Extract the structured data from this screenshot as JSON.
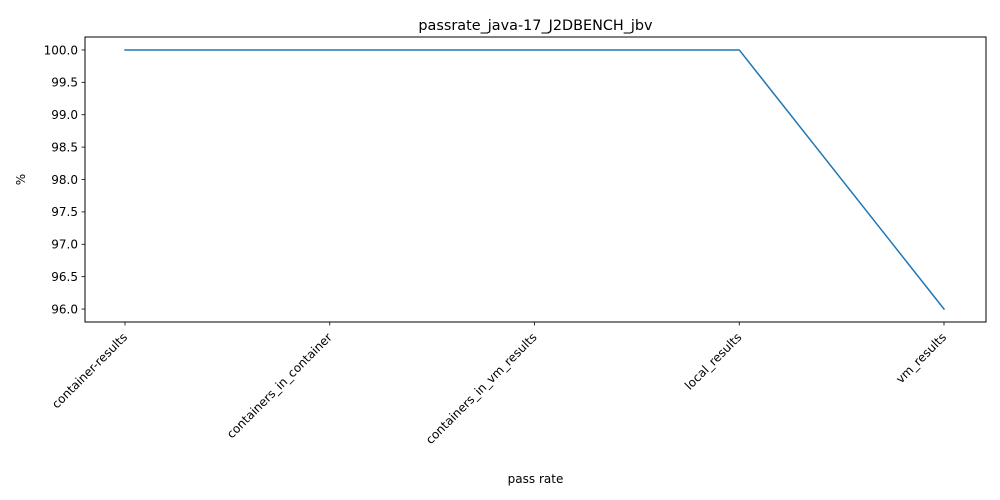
{
  "chart_data": {
    "type": "line",
    "title": "passrate_java-17_J2DBENCH_jbv",
    "xlabel": "pass rate",
    "ylabel": "%",
    "categories": [
      "container-results",
      "containers_in_container",
      "containers_in_vm_results",
      "local_results",
      "vm_results"
    ],
    "series": [
      {
        "values": [
          100.0,
          100.0,
          100.0,
          100.0,
          96.0
        ],
        "color": "#1f77b4"
      }
    ],
    "ylim": [
      95.8,
      100.2
    ],
    "yticks": [
      96.0,
      96.5,
      97.0,
      97.5,
      98.0,
      98.5,
      99.0,
      99.5,
      100.0
    ],
    "yticks_labels": [
      "96.0",
      "96.5",
      "97.0",
      "97.5",
      "98.0",
      "98.5",
      "99.0",
      "99.5",
      "100.0"
    ],
    "grid": false,
    "legend": "none"
  }
}
